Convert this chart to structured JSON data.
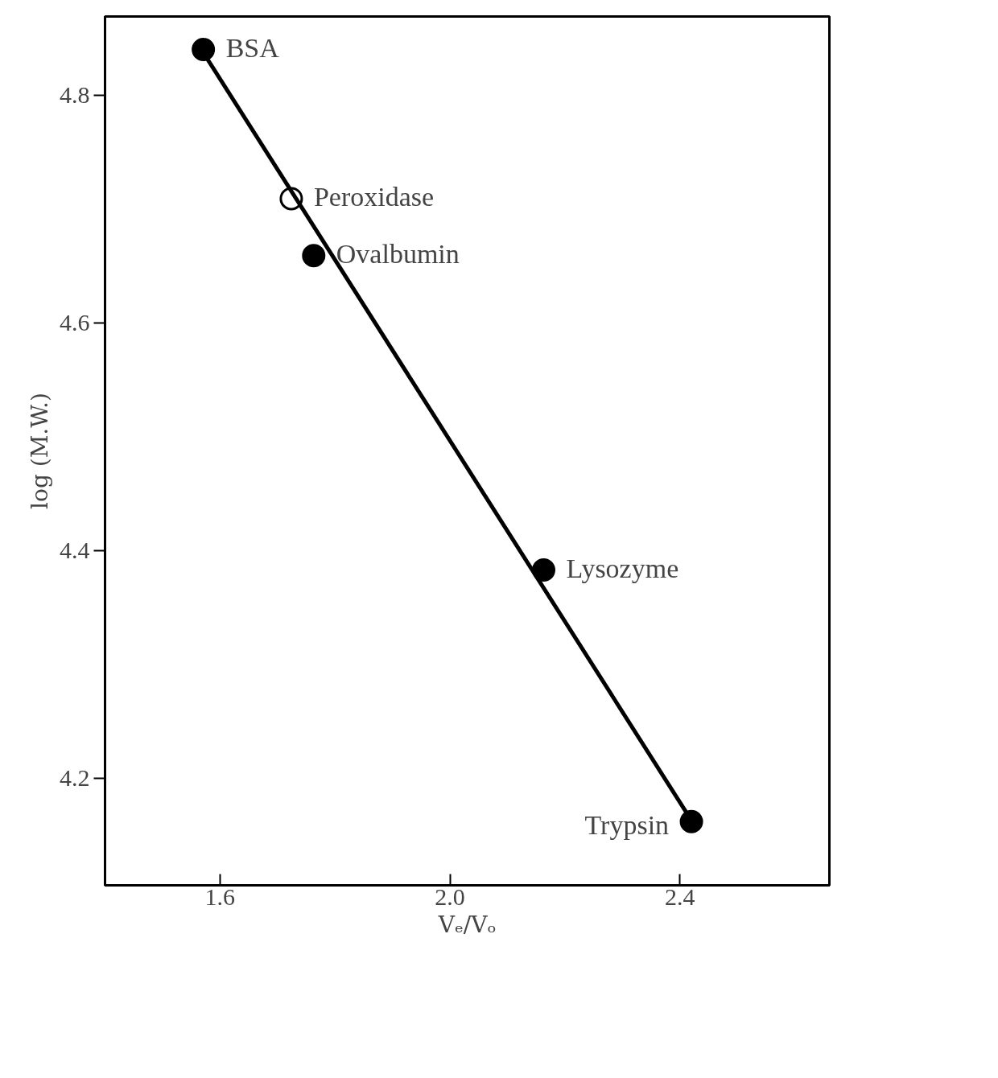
{
  "chart_data": {
    "type": "scatter",
    "xlabel": "Vₑ/Vₒ",
    "ylabel": "log (M.W.)",
    "xlim": [
      1.4,
      2.66
    ],
    "ylim": [
      4.106,
      4.869
    ],
    "xticks": [
      1.6,
      {
        "value": 2.0,
        "label": "2.0"
      },
      2.4
    ],
    "yticks": [
      4.2,
      4.4,
      4.6,
      4.8
    ],
    "grid": false,
    "series": [
      {
        "marker": "circle",
        "color": "#000000",
        "x": [
          1.571,
          1.763,
          2.163,
          2.42
        ],
        "values": [
          4.84,
          4.659,
          4.383,
          4.162
        ]
      },
      {
        "marker": "circle",
        "color": "#ffffff",
        "x": [
          1.724
        ],
        "values": [
          4.709
        ]
      },
      {
        "type": "line",
        "color": "#000000",
        "x": [
          1.57,
          2.42
        ],
        "values": [
          4.838,
          4.163
        ]
      }
    ],
    "annotations": [
      {
        "text": "BSA",
        "x": 1.571,
        "y": 4.84
      },
      {
        "text": "Peroxidase",
        "x": 1.724,
        "y": 4.709
      },
      {
        "text": "Ovalbumin",
        "x": 1.763,
        "y": 4.659
      },
      {
        "text": "Lysozyme",
        "x": 2.163,
        "y": 4.383
      },
      {
        "text": "Trypsin",
        "x": 2.42,
        "y": 4.162
      }
    ]
  }
}
